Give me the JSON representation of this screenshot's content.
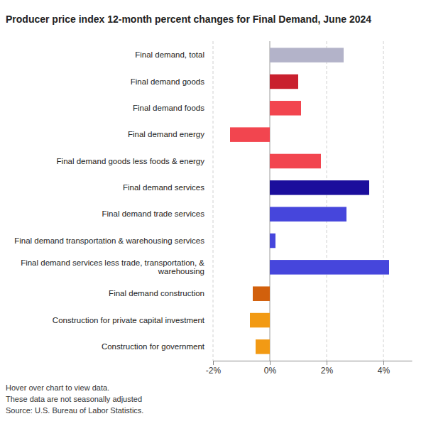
{
  "chart_data": {
    "type": "bar",
    "orientation": "horizontal",
    "title": "Producer price index 12-month percent changes for Final Demand, June 2024",
    "categories": [
      "Final demand, total",
      "Final demand goods",
      "Final demand foods",
      "Final demand energy",
      "Final demand goods less foods & energy",
      "Final demand services",
      "Final demand trade services",
      "Final demand transportation & warehousing services",
      "Final demand services less trade, transportation, & warehousing",
      "Final demand construction",
      "Construction for private capital investment",
      "Construction for government"
    ],
    "values": [
      2.6,
      1.0,
      1.1,
      -1.4,
      1.8,
      3.5,
      2.7,
      0.2,
      4.2,
      -0.6,
      -0.7,
      -0.5
    ],
    "colors": [
      "#b3b3c9",
      "#c9202e",
      "#f2454f",
      "#f2454f",
      "#f2454f",
      "#1b0e9c",
      "#4646dc",
      "#4646dc",
      "#4646dc",
      "#d2600c",
      "#f29a14",
      "#f29a14"
    ],
    "xlim": [
      -2,
      5
    ],
    "xticks": [
      {
        "value": -2,
        "label": "-2%"
      },
      {
        "value": 0,
        "label": "0%"
      },
      {
        "value": 2,
        "label": "2%"
      },
      {
        "value": 4,
        "label": "4%"
      }
    ],
    "grid": true,
    "notes": [
      "Hover over chart to view data.",
      "These data are not seasonally adjusted",
      "Source: U.S. Bureau of Labor Statistics."
    ]
  }
}
